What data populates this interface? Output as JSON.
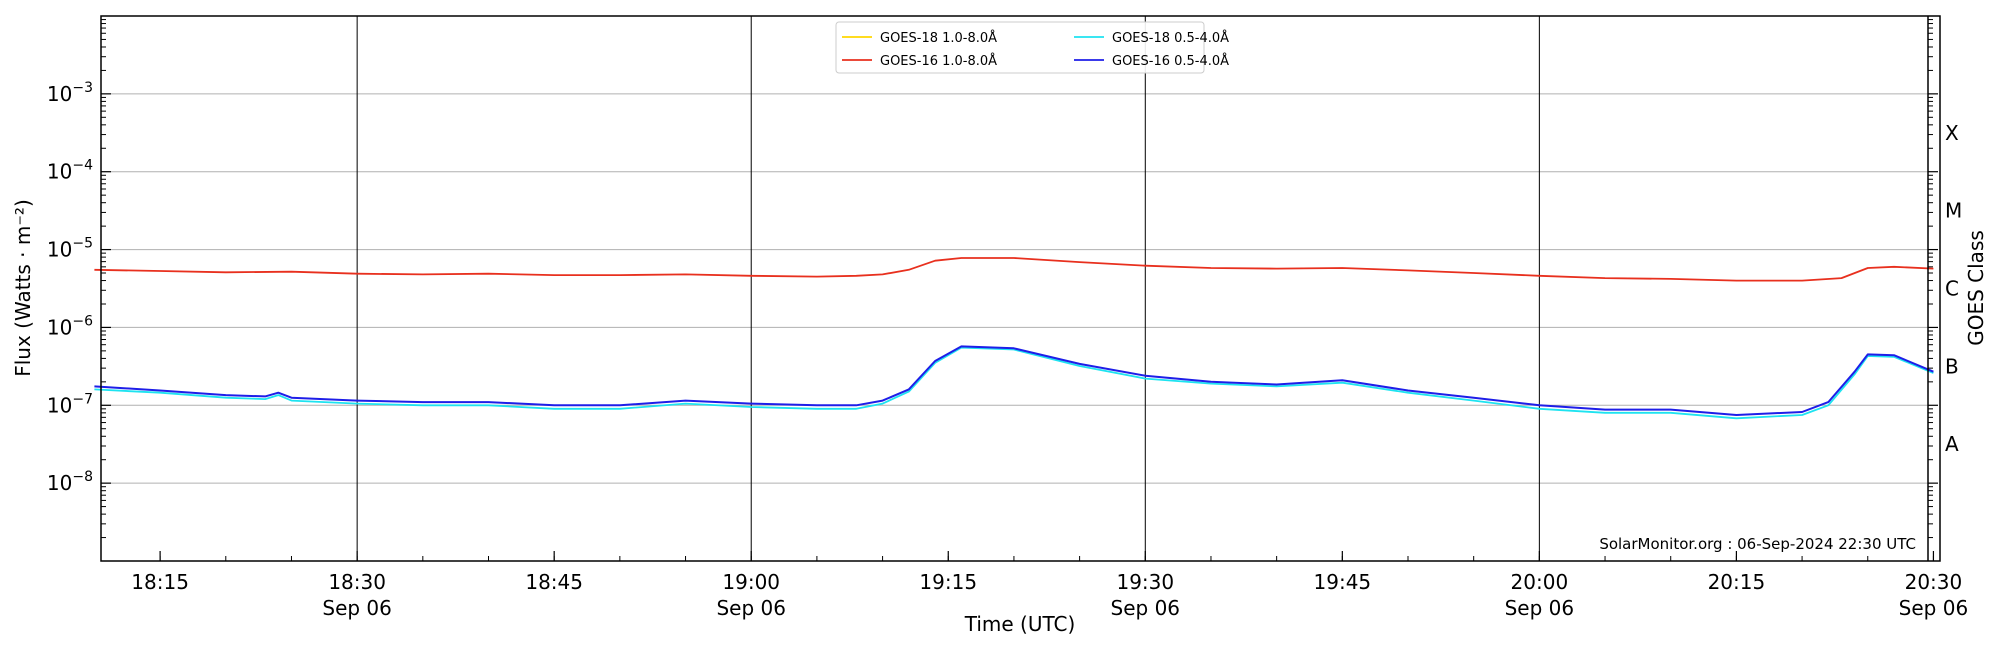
{
  "chart_data": {
    "type": "line",
    "title": "",
    "xlabel": "Time (UTC)",
    "ylabel": "Flux (Watts · m⁻²)",
    "right_ylabel": "GOES Class",
    "y_scale": "log",
    "ylim": [
      1e-09,
      0.01
    ],
    "xlim": [
      "2024-09-06T18:10:30",
      "2024-09-06T20:30:30"
    ],
    "grid": "horizontal at decades 1e-8 to 1e-3; vertical at 30-minute marks",
    "legend_position": "top-center",
    "x_ticks": [
      {
        "time": "2024-09-06T18:15",
        "label": "18:15",
        "sublabel": ""
      },
      {
        "time": "2024-09-06T18:30",
        "label": "18:30",
        "sublabel": "Sep 06"
      },
      {
        "time": "2024-09-06T18:45",
        "label": "18:45",
        "sublabel": ""
      },
      {
        "time": "2024-09-06T19:00",
        "label": "19:00",
        "sublabel": "Sep 06"
      },
      {
        "time": "2024-09-06T19:15",
        "label": "19:15",
        "sublabel": ""
      },
      {
        "time": "2024-09-06T19:30",
        "label": "19:30",
        "sublabel": "Sep 06"
      },
      {
        "time": "2024-09-06T19:45",
        "label": "19:45",
        "sublabel": ""
      },
      {
        "time": "2024-09-06T20:00",
        "label": "20:00",
        "sublabel": "Sep 06"
      },
      {
        "time": "2024-09-06T20:15",
        "label": "20:15",
        "sublabel": ""
      },
      {
        "time": "2024-09-06T20:30",
        "label": "20:30",
        "sublabel": "Sep 06"
      }
    ],
    "y_ticks": [
      {
        "value": 1e-08,
        "base": "10",
        "exp": "−8"
      },
      {
        "value": 1e-07,
        "base": "10",
        "exp": "−7"
      },
      {
        "value": 1e-06,
        "base": "10",
        "exp": "−6"
      },
      {
        "value": 1e-05,
        "base": "10",
        "exp": "−5"
      },
      {
        "value": 0.0001,
        "base": "10",
        "exp": "−4"
      },
      {
        "value": 0.001,
        "base": "10",
        "exp": "−3"
      }
    ],
    "goes_classes": [
      {
        "label": "A",
        "value": 3.16e-08
      },
      {
        "label": "B",
        "value": 3.16e-07
      },
      {
        "label": "C",
        "value": 3.16e-06
      },
      {
        "label": "M",
        "value": 3.16e-05
      },
      {
        "label": "X",
        "value": 0.000316
      }
    ],
    "annotation": "SolarMonitor.org : 06-Sep-2024 22:30 UTC",
    "series": [
      {
        "name": "GOES-18 1.0-8.0Å",
        "color": "#FFD700",
        "x": [],
        "y": []
      },
      {
        "name": "GOES-16 1.0-8.0Å",
        "color": "#E8301E",
        "x": [
          "2024-09-06T18:10",
          "2024-09-06T18:15",
          "2024-09-06T18:20",
          "2024-09-06T18:25",
          "2024-09-06T18:30",
          "2024-09-06T18:35",
          "2024-09-06T18:40",
          "2024-09-06T18:45",
          "2024-09-06T18:50",
          "2024-09-06T18:55",
          "2024-09-06T19:00",
          "2024-09-06T19:05",
          "2024-09-06T19:08",
          "2024-09-06T19:10",
          "2024-09-06T19:12",
          "2024-09-06T19:14",
          "2024-09-06T19:16",
          "2024-09-06T19:20",
          "2024-09-06T19:25",
          "2024-09-06T19:30",
          "2024-09-06T19:35",
          "2024-09-06T19:40",
          "2024-09-06T19:45",
          "2024-09-06T19:50",
          "2024-09-06T19:55",
          "2024-09-06T20:00",
          "2024-09-06T20:05",
          "2024-09-06T20:10",
          "2024-09-06T20:15",
          "2024-09-06T20:20",
          "2024-09-06T20:23",
          "2024-09-06T20:25",
          "2024-09-06T20:27",
          "2024-09-06T20:30"
        ],
        "y": [
          5.5e-06,
          5.3e-06,
          5.1e-06,
          5.2e-06,
          4.9e-06,
          4.8e-06,
          4.9e-06,
          4.7e-06,
          4.7e-06,
          4.8e-06,
          4.6e-06,
          4.5e-06,
          4.6e-06,
          4.8e-06,
          5.5e-06,
          7.2e-06,
          7.8e-06,
          7.8e-06,
          6.9e-06,
          6.2e-06,
          5.8e-06,
          5.7e-06,
          5.8e-06,
          5.4e-06,
          5e-06,
          4.6e-06,
          4.3e-06,
          4.2e-06,
          4e-06,
          4e-06,
          4.3e-06,
          5.8e-06,
          6e-06,
          5.7e-06
        ]
      },
      {
        "name": "GOES-18 0.5-4.0Å",
        "color": "#1EE3F0",
        "x": [
          "2024-09-06T18:10",
          "2024-09-06T18:15",
          "2024-09-06T18:20",
          "2024-09-06T18:23",
          "2024-09-06T18:24",
          "2024-09-06T18:25",
          "2024-09-06T18:30",
          "2024-09-06T18:35",
          "2024-09-06T18:40",
          "2024-09-06T18:45",
          "2024-09-06T18:50",
          "2024-09-06T18:55",
          "2024-09-06T19:00",
          "2024-09-06T19:05",
          "2024-09-06T19:08",
          "2024-09-06T19:10",
          "2024-09-06T19:12",
          "2024-09-06T19:14",
          "2024-09-06T19:16",
          "2024-09-06T19:20",
          "2024-09-06T19:25",
          "2024-09-06T19:30",
          "2024-09-06T19:35",
          "2024-09-06T19:40",
          "2024-09-06T19:45",
          "2024-09-06T19:50",
          "2024-09-06T19:55",
          "2024-09-06T20:00",
          "2024-09-06T20:05",
          "2024-09-06T20:10",
          "2024-09-06T20:15",
          "2024-09-06T20:20",
          "2024-09-06T20:22",
          "2024-09-06T20:24",
          "2024-09-06T20:25",
          "2024-09-06T20:27",
          "2024-09-06T20:30"
        ],
        "y": [
          1.6e-07,
          1.45e-07,
          1.25e-07,
          1.2e-07,
          1.35e-07,
          1.15e-07,
          1.05e-07,
          1e-07,
          1e-07,
          9e-08,
          9e-08,
          1.05e-07,
          9.5e-08,
          9e-08,
          9e-08,
          1.05e-07,
          1.5e-07,
          3.5e-07,
          5.5e-07,
          5.2e-07,
          3.2e-07,
          2.2e-07,
          1.9e-07,
          1.75e-07,
          1.95e-07,
          1.45e-07,
          1.15e-07,
          9e-08,
          8e-08,
          8e-08,
          6.8e-08,
          7.5e-08,
          1e-07,
          2.5e-07,
          4.3e-07,
          4.2e-07,
          2.6e-07
        ]
      },
      {
        "name": "GOES-16 0.5-4.0Å",
        "color": "#1E1EE8",
        "x": [
          "2024-09-06T18:10",
          "2024-09-06T18:15",
          "2024-09-06T18:20",
          "2024-09-06T18:23",
          "2024-09-06T18:24",
          "2024-09-06T18:25",
          "2024-09-06T18:30",
          "2024-09-06T18:35",
          "2024-09-06T18:40",
          "2024-09-06T18:45",
          "2024-09-06T18:50",
          "2024-09-06T18:55",
          "2024-09-06T19:00",
          "2024-09-06T19:05",
          "2024-09-06T19:08",
          "2024-09-06T19:10",
          "2024-09-06T19:12",
          "2024-09-06T19:14",
          "2024-09-06T19:16",
          "2024-09-06T19:20",
          "2024-09-06T19:25",
          "2024-09-06T19:30",
          "2024-09-06T19:35",
          "2024-09-06T19:40",
          "2024-09-06T19:45",
          "2024-09-06T19:50",
          "2024-09-06T19:55",
          "2024-09-06T20:00",
          "2024-09-06T20:05",
          "2024-09-06T20:10",
          "2024-09-06T20:15",
          "2024-09-06T20:20",
          "2024-09-06T20:22",
          "2024-09-06T20:24",
          "2024-09-06T20:25",
          "2024-09-06T20:27",
          "2024-09-06T20:30"
        ],
        "y": [
          1.75e-07,
          1.55e-07,
          1.35e-07,
          1.3e-07,
          1.45e-07,
          1.25e-07,
          1.15e-07,
          1.1e-07,
          1.1e-07,
          1e-07,
          1e-07,
          1.15e-07,
          1.05e-07,
          1e-07,
          1e-07,
          1.15e-07,
          1.6e-07,
          3.7e-07,
          5.7e-07,
          5.4e-07,
          3.4e-07,
          2.4e-07,
          2e-07,
          1.85e-07,
          2.1e-07,
          1.55e-07,
          1.25e-07,
          1e-07,
          8.8e-08,
          8.8e-08,
          7.5e-08,
          8.2e-08,
          1.1e-07,
          2.7e-07,
          4.5e-07,
          4.4e-07,
          2.7e-07
        ]
      }
    ]
  }
}
